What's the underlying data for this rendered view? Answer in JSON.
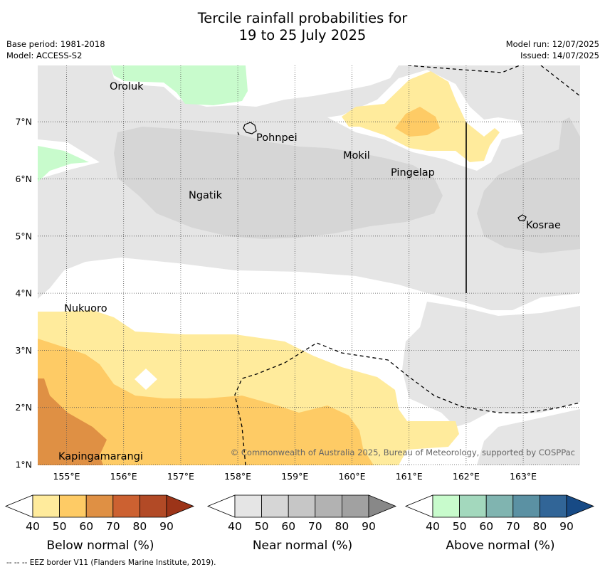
{
  "title_line1": "Tercile rainfall probabilities for",
  "title_line2": "19 to 25 July 2025",
  "base_period": "Base period: 1981-2018",
  "model": "Model: ACCESS-S2",
  "model_run": "Model run: 12/07/2025",
  "issued": "Issued: 14/07/2025",
  "copyright": "© Commonwealth of Australia 2025, Bureau of Meteorology, supported by COSPPac",
  "footer": "--  --  -- EEZ border V11 (Flanders Marine Institute, 2019).",
  "map": {
    "lon_ticks": [
      "155°E",
      "156°E",
      "157°E",
      "158°E",
      "159°E",
      "160°E",
      "161°E",
      "162°E",
      "163°E"
    ],
    "lat_ticks": [
      "1°N",
      "2°N",
      "3°N",
      "4°N",
      "5°N",
      "6°N",
      "7°N"
    ],
    "places": [
      "Oroluk",
      "Pohnpei",
      "Mokil",
      "Pingelap",
      "Ngatik",
      "Kosrae",
      "Nukuoro",
      "Kapingamarangi"
    ]
  },
  "colorbars": [
    {
      "title": "Below normal (%)",
      "ticks": [
        "40",
        "50",
        "60",
        "70",
        "80",
        "90"
      ],
      "colors": [
        "#ffffff",
        "#ffeb9c",
        "#fecb65",
        "#df9044",
        "#cc6131",
        "#b24a26",
        "#9c3418"
      ]
    },
    {
      "title": "Near normal (%)",
      "ticks": [
        "40",
        "50",
        "60",
        "70",
        "80",
        "90"
      ],
      "colors": [
        "#ffffff",
        "#e5e5e5",
        "#d6d6d6",
        "#c6c6c6",
        "#b2b2b2",
        "#a1a1a1",
        "#888888"
      ]
    },
    {
      "title": "Above normal (%)",
      "ticks": [
        "40",
        "50",
        "60",
        "70",
        "80",
        "90"
      ],
      "colors": [
        "#ffffff",
        "#c8fbcc",
        "#a3d8bd",
        "#80b4b0",
        "#5b91a3",
        "#316597",
        "#174a85"
      ]
    }
  ],
  "colors": {
    "near40": "#e5e5e5",
    "near50": "#d6d6d6",
    "below40": "#ffeb9c",
    "below50": "#fecb65",
    "below60": "#df9044",
    "above40": "#c8fbcc"
  }
}
